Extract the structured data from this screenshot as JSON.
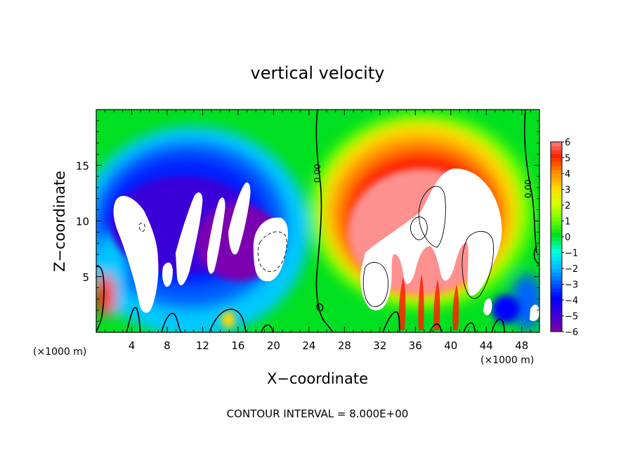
{
  "chart_data": {
    "type": "heatmap",
    "title": "vertical velocity",
    "xlabel": "X−coordinate",
    "ylabel": "Z−coordinate",
    "x_unit": "(×1000 m)",
    "z_unit": "(×1000 m)",
    "xlim": [
      0,
      50
    ],
    "ylim": [
      0,
      20
    ],
    "x_ticks": [
      4,
      8,
      12,
      16,
      20,
      24,
      28,
      32,
      36,
      40,
      44,
      48
    ],
    "y_ticks": [
      5,
      10,
      15
    ],
    "colorbar": {
      "min": -6,
      "max": 6,
      "ticks": [
        6,
        5,
        4,
        3,
        2,
        1,
        0,
        -1,
        -2,
        -3,
        -4,
        -5,
        -6
      ],
      "tick_labels": [
        "6",
        "5",
        "4",
        "3",
        "2",
        "1",
        "0",
        "−1",
        "−2",
        "−3",
        "−4",
        "−5",
        "−6"
      ],
      "colors": [
        "#7a00b0",
        "#3a00d8",
        "#0000ff",
        "#0060ff",
        "#00c0ff",
        "#00ffd8",
        "#00e020",
        "#70ff00",
        "#d8ff00",
        "#ffd800",
        "#ff8800",
        "#ff2000",
        "#ff9090"
      ]
    },
    "zero_contour_label": "0.00",
    "annotation": "CONTOUR INTERVAL = 8.000E+00",
    "features": [
      {
        "type": "updraft",
        "x": 34,
        "z": 9,
        "peak": 6,
        "note": "broad updraft core saturating above scale"
      },
      {
        "type": "downdraft",
        "x": 13,
        "z": 10,
        "peak": -6,
        "note": "deep downdraft region, columns saturated below scale"
      }
    ]
  }
}
